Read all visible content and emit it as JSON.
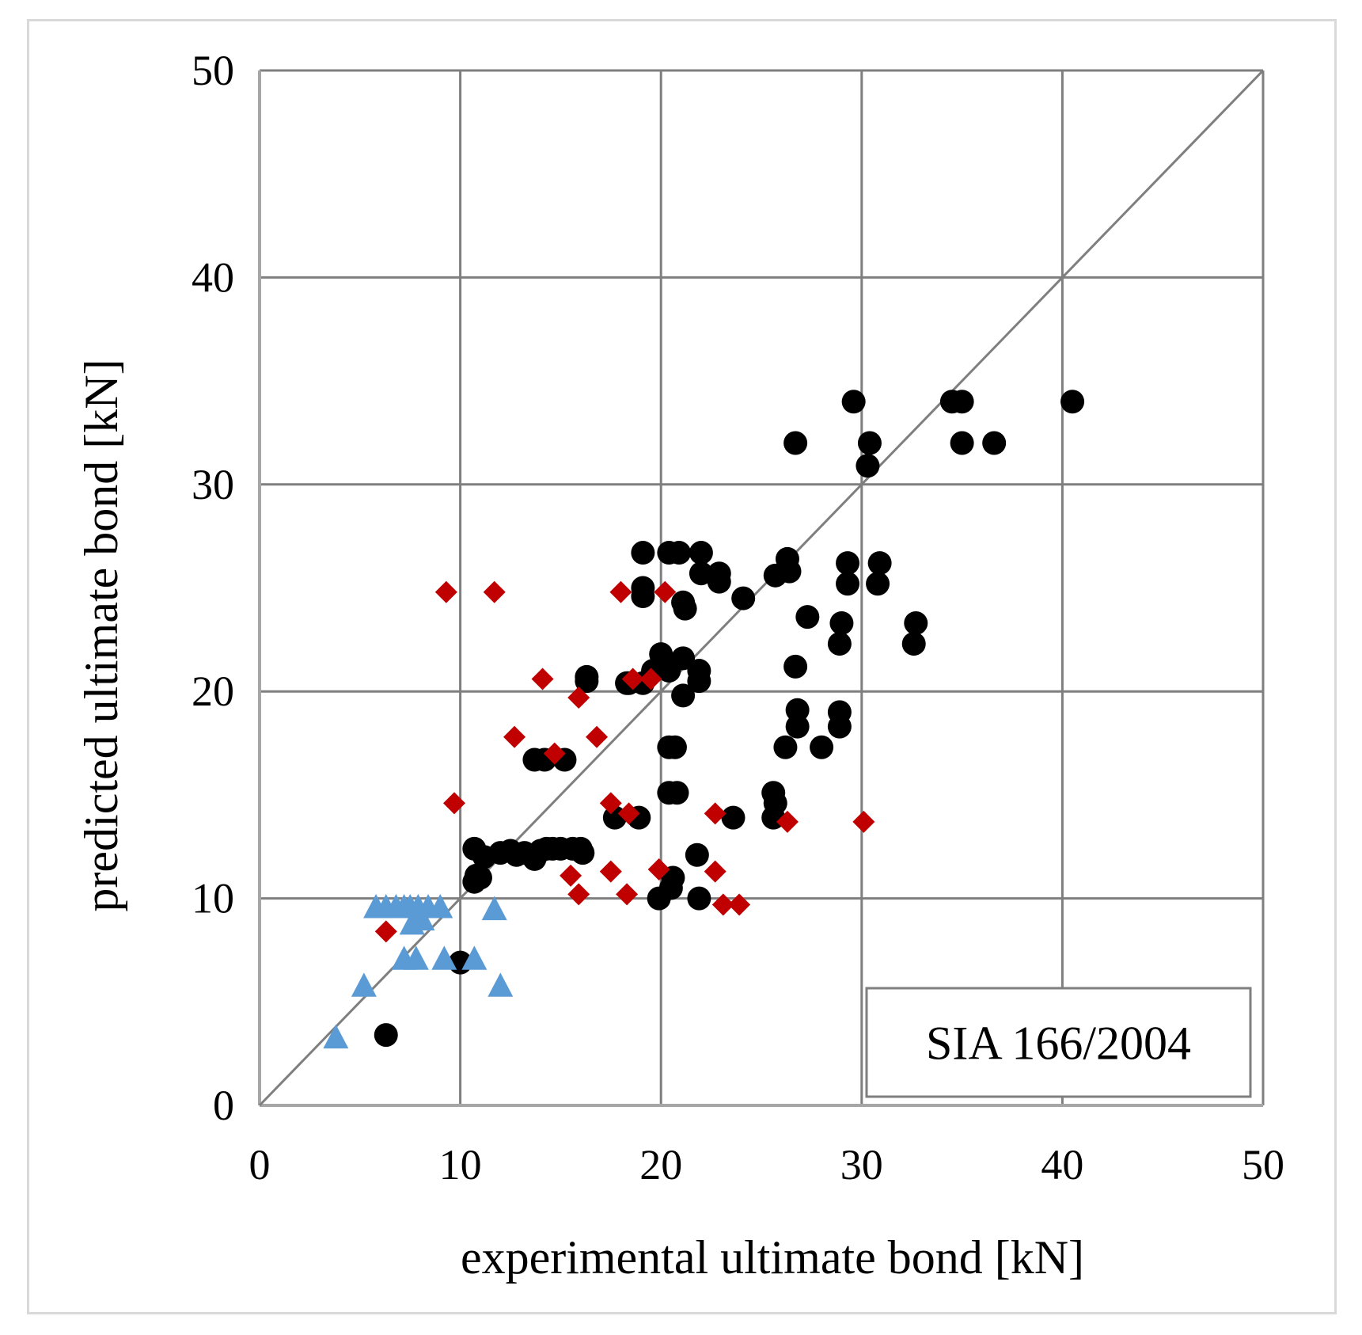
{
  "chart_data": {
    "type": "scatter",
    "title": "",
    "xlabel": "experimental ultimate bond [kN]",
    "ylabel": "predicted ultimate bond [kN]",
    "xlim": [
      0,
      50
    ],
    "ylim": [
      0,
      50
    ],
    "xticks": [
      "0",
      "10",
      "20",
      "30",
      "40",
      "50"
    ],
    "yticks": [
      "0",
      "10",
      "20",
      "30",
      "40",
      "50"
    ],
    "grid": true,
    "annotation": "SIA 166/2004",
    "reference_line": {
      "name": "y = x",
      "color": "#7f7f7f"
    },
    "series": [
      {
        "name": "black circles",
        "marker": "circle",
        "color": "#000000",
        "points": [
          [
            6.3,
            3.4
          ],
          [
            10.0,
            6.9
          ],
          [
            10.7,
            10.8
          ],
          [
            10.8,
            11.1
          ],
          [
            10.7,
            12.4
          ],
          [
            11.0,
            11.0
          ],
          [
            11.2,
            12.0
          ],
          [
            12.0,
            12.2
          ],
          [
            12.5,
            12.3
          ],
          [
            12.8,
            12.1
          ],
          [
            13.2,
            12.2
          ],
          [
            13.7,
            11.9
          ],
          [
            14.0,
            12.3
          ],
          [
            14.3,
            12.4
          ],
          [
            14.6,
            12.4
          ],
          [
            15.0,
            12.4
          ],
          [
            15.6,
            12.4
          ],
          [
            16.0,
            12.4
          ],
          [
            16.1,
            12.2
          ],
          [
            13.7,
            16.7
          ],
          [
            14.2,
            16.7
          ],
          [
            15.2,
            16.7
          ],
          [
            16.3,
            20.5
          ],
          [
            16.3,
            20.7
          ],
          [
            17.7,
            13.9
          ],
          [
            18.9,
            13.9
          ],
          [
            18.4,
            20.4
          ],
          [
            18.3,
            20.4
          ],
          [
            19.1,
            20.4
          ],
          [
            19.1,
            24.6
          ],
          [
            19.1,
            25.0
          ],
          [
            19.1,
            26.7
          ],
          [
            19.6,
            21.0
          ],
          [
            19.9,
            10.0
          ],
          [
            20.0,
            21.8
          ],
          [
            20.2,
            21.2
          ],
          [
            20.4,
            21.0
          ],
          [
            20.4,
            17.3
          ],
          [
            20.7,
            17.3
          ],
          [
            20.4,
            15.1
          ],
          [
            20.8,
            15.1
          ],
          [
            20.5,
            10.5
          ],
          [
            20.6,
            11.0
          ],
          [
            20.4,
            26.7
          ],
          [
            20.9,
            26.7
          ],
          [
            21.1,
            19.8
          ],
          [
            21.1,
            21.6
          ],
          [
            21.1,
            24.3
          ],
          [
            21.2,
            24.0
          ],
          [
            21.8,
            12.1
          ],
          [
            21.9,
            10.0
          ],
          [
            21.9,
            20.5
          ],
          [
            21.9,
            21.0
          ],
          [
            22.0,
            25.7
          ],
          [
            22.0,
            26.7
          ],
          [
            22.9,
            25.3
          ],
          [
            22.9,
            25.7
          ],
          [
            23.6,
            13.9
          ],
          [
            24.1,
            24.5
          ],
          [
            25.6,
            13.9
          ],
          [
            25.6,
            15.1
          ],
          [
            25.7,
            14.6
          ],
          [
            25.7,
            25.6
          ],
          [
            26.2,
            17.3
          ],
          [
            26.3,
            26.4
          ],
          [
            26.4,
            25.8
          ],
          [
            26.7,
            21.2
          ],
          [
            26.7,
            32.0
          ],
          [
            26.8,
            18.3
          ],
          [
            26.8,
            19.1
          ],
          [
            27.3,
            23.6
          ],
          [
            28.0,
            17.3
          ],
          [
            28.9,
            18.3
          ],
          [
            28.9,
            19.0
          ],
          [
            28.9,
            22.3
          ],
          [
            29.0,
            23.3
          ],
          [
            29.3,
            26.2
          ],
          [
            29.3,
            25.2
          ],
          [
            29.6,
            34.0
          ],
          [
            30.3,
            30.9
          ],
          [
            30.4,
            32.0
          ],
          [
            30.8,
            25.2
          ],
          [
            30.9,
            26.2
          ],
          [
            32.6,
            22.3
          ],
          [
            32.7,
            23.3
          ],
          [
            34.5,
            34.0
          ],
          [
            35.0,
            34.0
          ],
          [
            35.0,
            32.0
          ],
          [
            36.6,
            32.0
          ],
          [
            40.5,
            34.0
          ]
        ]
      },
      {
        "name": "red diamonds",
        "marker": "diamond",
        "color": "#c00000",
        "points": [
          [
            6.3,
            8.4
          ],
          [
            9.3,
            24.8
          ],
          [
            9.7,
            14.6
          ],
          [
            11.7,
            24.8
          ],
          [
            12.7,
            17.8
          ],
          [
            14.1,
            20.6
          ],
          [
            14.7,
            17.0
          ],
          [
            15.5,
            11.1
          ],
          [
            15.9,
            10.2
          ],
          [
            15.9,
            19.7
          ],
          [
            16.8,
            17.8
          ],
          [
            17.5,
            11.3
          ],
          [
            17.5,
            14.6
          ],
          [
            18.0,
            24.8
          ],
          [
            18.3,
            10.2
          ],
          [
            18.4,
            14.1
          ],
          [
            18.6,
            20.6
          ],
          [
            19.5,
            20.6
          ],
          [
            19.9,
            11.4
          ],
          [
            20.2,
            24.8
          ],
          [
            22.7,
            11.3
          ],
          [
            22.7,
            14.1
          ],
          [
            23.1,
            9.7
          ],
          [
            23.9,
            9.7
          ],
          [
            26.3,
            13.7
          ],
          [
            30.1,
            13.7
          ]
        ]
      },
      {
        "name": "blue triangles",
        "marker": "triangle",
        "color": "#5b9bd5",
        "points": [
          [
            3.8,
            3.3
          ],
          [
            5.2,
            5.8
          ],
          [
            5.8,
            9.6
          ],
          [
            6.3,
            9.6
          ],
          [
            6.8,
            9.6
          ],
          [
            7.2,
            9.6
          ],
          [
            7.2,
            7.1
          ],
          [
            7.5,
            9.6
          ],
          [
            7.6,
            8.8
          ],
          [
            7.8,
            7.1
          ],
          [
            7.9,
            9.6
          ],
          [
            8.1,
            9.0
          ],
          [
            8.4,
            9.6
          ],
          [
            9.0,
            9.6
          ],
          [
            9.2,
            7.1
          ],
          [
            10.7,
            7.1
          ],
          [
            11.7,
            9.5
          ],
          [
            12.0,
            5.8
          ]
        ]
      }
    ]
  }
}
